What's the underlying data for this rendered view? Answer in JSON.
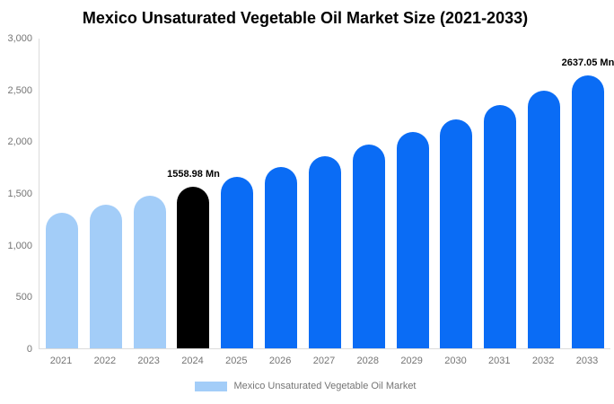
{
  "chart_data": {
    "type": "bar",
    "title": "Mexico Unsaturated Vegetable Oil Market Size (2021-2033)",
    "xlabel": "",
    "ylabel": "",
    "unit": "Mn",
    "ylim": [
      0,
      3000
    ],
    "grid": false,
    "legend_position": "bottom",
    "categories": [
      "2021",
      "2022",
      "2023",
      "2024",
      "2025",
      "2026",
      "2027",
      "2028",
      "2029",
      "2030",
      "2031",
      "2032",
      "2033"
    ],
    "values": [
      1310,
      1388,
      1471,
      1558.98,
      1653,
      1752,
      1857,
      1969,
      2087,
      2213,
      2346,
      2487,
      2637.05
    ],
    "bar_colors": [
      "#a3cdf8",
      "#a3cdf8",
      "#a3cdf8",
      "#000000",
      "#0a6cf5",
      "#0a6cf5",
      "#0a6cf5",
      "#0a6cf5",
      "#0a6cf5",
      "#0a6cf5",
      "#0a6cf5",
      "#0a6cf5",
      "#0a6cf5"
    ],
    "data_labels": {
      "2024": "1558.98 Mn",
      "2033": "2637.05 Mn"
    },
    "yticks": [
      {
        "value": 0,
        "label": "0"
      },
      {
        "value": 500,
        "label": "500"
      },
      {
        "value": 1000,
        "label": "1,000"
      },
      {
        "value": 1500,
        "label": "1,500"
      },
      {
        "value": 2000,
        "label": "2,000"
      },
      {
        "value": 2500,
        "label": "2,500"
      },
      {
        "value": 3000,
        "label": "3,000"
      }
    ],
    "colors": {
      "historical": "#a3cdf8",
      "base_year": "#000000",
      "forecast": "#0a6cf5",
      "axis_line": "#dcdcdc",
      "tick_text": "#757575"
    },
    "legend": [
      {
        "label": "Mexico Unsaturated Vegetable Oil Market",
        "color": "#a3cdf8"
      }
    ]
  }
}
